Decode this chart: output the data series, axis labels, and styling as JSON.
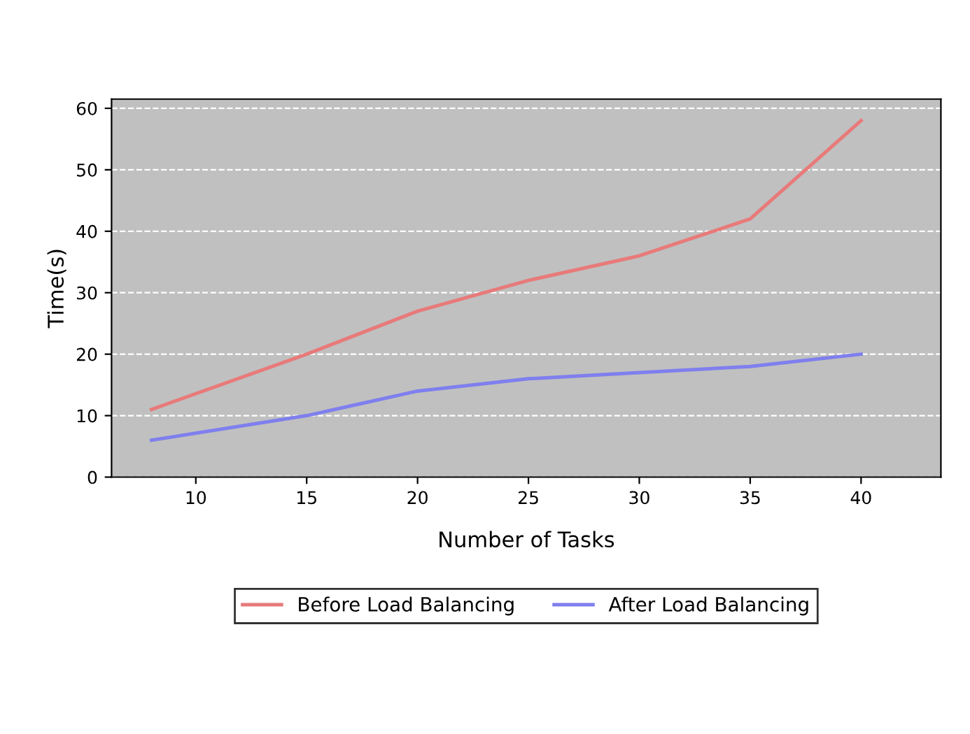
{
  "chart_data": {
    "type": "line",
    "xlabel": "Number of Tasks",
    "ylabel": "Time(s)",
    "x": [
      8,
      15,
      20,
      25,
      30,
      35,
      40
    ],
    "series": [
      {
        "name": "Before Load Balancing",
        "color": "#e87a7a",
        "values": [
          11,
          20,
          27,
          32,
          36,
          42,
          58
        ]
      },
      {
        "name": "After Load Balancing",
        "color": "#7f7fee",
        "values": [
          6,
          10,
          14,
          16,
          17,
          18,
          20
        ]
      }
    ],
    "xlim": [
      6.2,
      43.6
    ],
    "ylim": [
      0,
      61.5
    ],
    "xticks": [
      10,
      15,
      20,
      25,
      30,
      35,
      40
    ],
    "yticks": [
      0,
      10,
      20,
      30,
      40,
      50,
      60
    ],
    "grid": "y",
    "legend": "bottom",
    "marker": "none",
    "line_style": "solid"
  }
}
